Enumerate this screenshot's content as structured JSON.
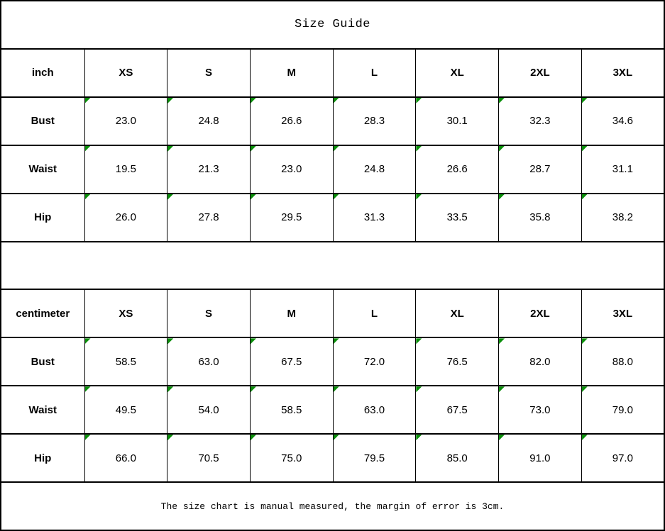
{
  "chart_data": {
    "type": "table",
    "title": "Size Guide",
    "footer_note": "The size chart is manual measured, the margin of error is 3cm.",
    "tables": [
      {
        "unit_label": "inch",
        "sizes": [
          "XS",
          "S",
          "M",
          "L",
          "XL",
          "2XL",
          "3XL"
        ],
        "rows": [
          {
            "label": "Bust",
            "values": [
              "23.0",
              "24.8",
              "26.6",
              "28.3",
              "30.1",
              "32.3",
              "34.6"
            ]
          },
          {
            "label": "Waist",
            "values": [
              "19.5",
              "21.3",
              "23.0",
              "24.8",
              "26.6",
              "28.7",
              "31.1"
            ]
          },
          {
            "label": "Hip",
            "values": [
              "26.0",
              "27.8",
              "29.5",
              "31.3",
              "33.5",
              "35.8",
              "38.2"
            ]
          }
        ]
      },
      {
        "unit_label": "centimeter",
        "sizes": [
          "XS",
          "S",
          "M",
          "L",
          "XL",
          "2XL",
          "3XL"
        ],
        "rows": [
          {
            "label": "Bust",
            "values": [
              "58.5",
              "63.0",
              "67.5",
              "72.0",
              "76.5",
              "82.0",
              "88.0"
            ]
          },
          {
            "label": "Waist",
            "values": [
              "49.5",
              "54.0",
              "58.5",
              "63.0",
              "67.5",
              "73.0",
              "79.0"
            ]
          },
          {
            "label": "Hip",
            "values": [
              "66.0",
              "70.5",
              "75.0",
              "79.5",
              "85.0",
              "91.0",
              "97.0"
            ]
          }
        ]
      }
    ]
  },
  "icons": {
    "cell_flag": "green-corner-triangle-icon"
  },
  "colors": {
    "background": "#ffffff",
    "border": "#000000",
    "text": "#000000",
    "marker_green": "#0a8f0a"
  }
}
